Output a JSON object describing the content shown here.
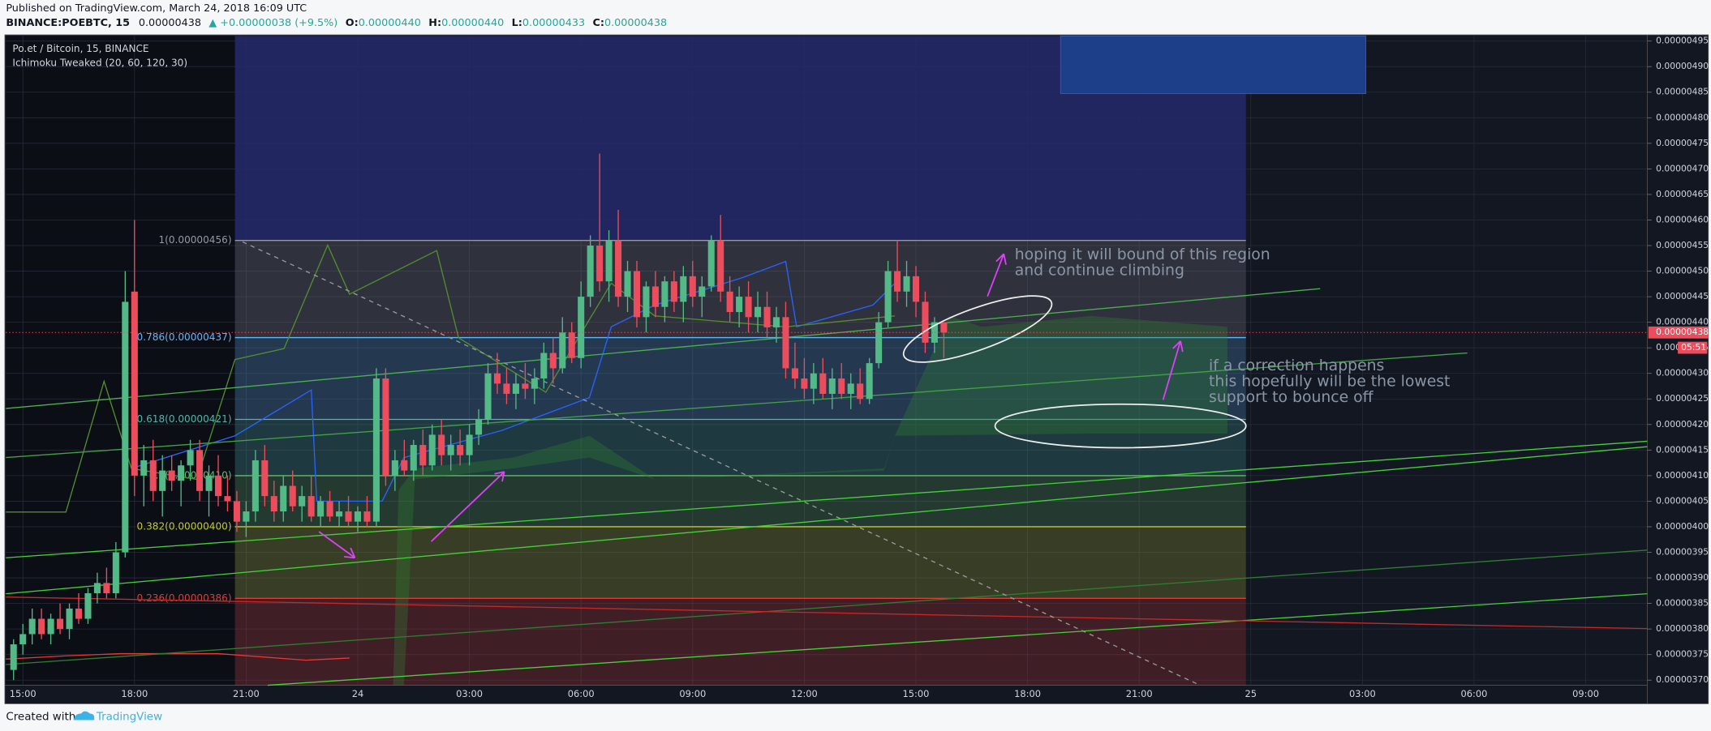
{
  "header": {
    "published": "Published on TradingView.com, March 24, 2018 16:09 UTC",
    "symbol": "BINANCE:POEBTC, 15",
    "last": "0.00000438",
    "change": "▲ +0.00000038 (+9.5%)",
    "ohlc": [
      {
        "label": "O:",
        "value": "0.00000440"
      },
      {
        "label": "H:",
        "value": "0.00000440"
      },
      {
        "label": "L:",
        "value": "0.00000433"
      },
      {
        "label": "C:",
        "value": "0.00000438"
      }
    ]
  },
  "chart_data": {
    "type": "candlestick",
    "title": "Po.et / Bitcoin, 15, BINANCE",
    "indicator": "Ichimoku Tweaked (20, 60, 120, 30)",
    "up_color": "#53b987",
    "down_color": "#eb4d5c",
    "ylim": [
      3.69e-06,
      4.96e-06
    ],
    "yticks": [
      {
        "value": 3.7e-06,
        "label": "0.00000370"
      },
      {
        "value": 3.75e-06,
        "label": "0.00000375"
      },
      {
        "value": 3.8e-06,
        "label": "0.00000380"
      },
      {
        "value": 3.85e-06,
        "label": "0.00000385"
      },
      {
        "value": 3.9e-06,
        "label": "0.00000390"
      },
      {
        "value": 3.95e-06,
        "label": "0.00000395"
      },
      {
        "value": 4e-06,
        "label": "0.00000400"
      },
      {
        "value": 4.05e-06,
        "label": "0.00000405"
      },
      {
        "value": 4.1e-06,
        "label": "0.00000410"
      },
      {
        "value": 4.15e-06,
        "label": "0.00000415"
      },
      {
        "value": 4.2e-06,
        "label": "0.00000420"
      },
      {
        "value": 4.25e-06,
        "label": "0.00000425"
      },
      {
        "value": 4.3e-06,
        "label": "0.00000430"
      },
      {
        "value": 4.35e-06,
        "label": "0.00000435"
      },
      {
        "value": 4.4e-06,
        "label": "0.00000440"
      },
      {
        "value": 4.45e-06,
        "label": "0.00000445"
      },
      {
        "value": 4.5e-06,
        "label": "0.00000450"
      },
      {
        "value": 4.55e-06,
        "label": "0.00000455"
      },
      {
        "value": 4.6e-06,
        "label": "0.00000460"
      },
      {
        "value": 4.65e-06,
        "label": "0.00000465"
      },
      {
        "value": 4.7e-06,
        "label": "0.00000470"
      },
      {
        "value": 4.75e-06,
        "label": "0.00000475"
      },
      {
        "value": 4.8e-06,
        "label": "0.00000480"
      },
      {
        "value": 4.85e-06,
        "label": "0.00000485"
      },
      {
        "value": 4.9e-06,
        "label": "0.00000490"
      },
      {
        "value": 4.95e-06,
        "label": "0.00000495"
      }
    ],
    "x_labels": [
      "15:00",
      "18:00",
      "21:00",
      "24",
      "03:00",
      "06:00",
      "09:00",
      "12:00",
      "15:00",
      "18:00",
      "21:00",
      "25",
      "03:00",
      "06:00",
      "09:00"
    ],
    "open": [
      3.72e-06,
      3.77e-06,
      3.79e-06,
      3.82e-06,
      3.79e-06,
      3.82e-06,
      3.8e-06,
      3.84e-06,
      3.82e-06,
      3.87e-06,
      3.89e-06,
      3.87e-06,
      3.95e-06,
      4.46e-06,
      4.1e-06,
      4.13e-06,
      4.07e-06,
      4.11e-06,
      4.09e-06,
      4.12e-06,
      4.15e-06,
      4.07e-06,
      4.1e-06,
      4.06e-06,
      4.05e-06,
      4.01e-06,
      4.03e-06,
      4.13e-06,
      4.06e-06,
      4.03e-06,
      4.08e-06,
      4.04e-06,
      4.06e-06,
      4.02e-06,
      4.05e-06,
      4.02e-06,
      4.03e-06,
      4.01e-06,
      4.03e-06,
      4.01e-06,
      4.29e-06,
      4.1e-06,
      4.13e-06,
      4.11e-06,
      4.16e-06,
      4.12e-06,
      4.18e-06,
      4.14e-06,
      4.16e-06,
      4.14e-06,
      4.18e-06,
      4.21e-06,
      4.3e-06,
      4.28e-06,
      4.26e-06,
      4.28e-06,
      4.27e-06,
      4.29e-06,
      4.34e-06,
      4.31e-06,
      4.38e-06,
      4.33e-06,
      4.45e-06,
      4.55e-06,
      4.48e-06,
      4.56e-06,
      4.45e-06,
      4.5e-06,
      4.41e-06,
      4.47e-06,
      4.43e-06,
      4.48e-06,
      4.44e-06,
      4.49e-06,
      4.45e-06,
      4.47e-06,
      4.56e-06,
      4.46e-06,
      4.42e-06,
      4.45e-06,
      4.41e-06,
      4.43e-06,
      4.39e-06,
      4.41e-06,
      4.31e-06,
      4.29e-06,
      4.27e-06,
      4.3e-06,
      4.26e-06,
      4.29e-06,
      4.26e-06,
      4.28e-06,
      4.25e-06,
      4.32e-06,
      4.4e-06,
      4.5e-06,
      4.46e-06,
      4.49e-06,
      4.44e-06,
      4.36e-06,
      4.4e-06
    ],
    "high": [
      3.78e-06,
      3.81e-06,
      3.84e-06,
      3.84e-06,
      3.83e-06,
      3.85e-06,
      3.85e-06,
      3.87e-06,
      3.88e-06,
      3.91e-06,
      3.92e-06,
      3.97e-06,
      4.5e-06,
      4.6e-06,
      4.16e-06,
      4.17e-06,
      4.14e-06,
      4.14e-06,
      4.13e-06,
      4.17e-06,
      4.17e-06,
      4.12e-06,
      4.14e-06,
      4.1e-06,
      4.07e-06,
      4.05e-06,
      4.15e-06,
      4.16e-06,
      4.09e-06,
      4.1e-06,
      4.11e-06,
      4.08e-06,
      4.1e-06,
      4.06e-06,
      4.07e-06,
      4.05e-06,
      4.06e-06,
      4.04e-06,
      4.06e-06,
      4.31e-06,
      4.31e-06,
      4.15e-06,
      4.17e-06,
      4.17e-06,
      4.19e-06,
      4.2e-06,
      4.21e-06,
      4.18e-06,
      4.19e-06,
      4.2e-06,
      4.23e-06,
      4.32e-06,
      4.34e-06,
      4.31e-06,
      4.3e-06,
      4.32e-06,
      4.31e-06,
      4.36e-06,
      4.37e-06,
      4.41e-06,
      4.4e-06,
      4.48e-06,
      4.57e-06,
      4.73e-06,
      4.58e-06,
      4.62e-06,
      4.52e-06,
      4.52e-06,
      4.48e-06,
      4.5e-06,
      4.49e-06,
      4.5e-06,
      4.51e-06,
      4.52e-06,
      4.49e-06,
      4.57e-06,
      4.61e-06,
      4.49e-06,
      4.47e-06,
      4.48e-06,
      4.46e-06,
      4.46e-06,
      4.43e-06,
      4.44e-06,
      4.36e-06,
      4.33e-06,
      4.32e-06,
      4.33e-06,
      4.31e-06,
      4.32e-06,
      4.3e-06,
      4.31e-06,
      4.33e-06,
      4.42e-06,
      4.52e-06,
      4.56e-06,
      4.52e-06,
      4.51e-06,
      4.46e-06,
      4.41e-06,
      4.4e-06
    ],
    "low": [
      3.7e-06,
      3.75e-06,
      3.77e-06,
      3.78e-06,
      3.77e-06,
      3.79e-06,
      3.78e-06,
      3.81e-06,
      3.81e-06,
      3.85e-06,
      3.86e-06,
      3.86e-06,
      3.94e-06,
      4.06e-06,
      4.04e-06,
      4.05e-06,
      4.02e-06,
      4.07e-06,
      4.04e-06,
      4.09e-06,
      4.05e-06,
      4.02e-06,
      4.04e-06,
      4.03e-06,
      3.99e-06,
      3.98e-06,
      4.01e-06,
      4.04e-06,
      4.01e-06,
      4.01e-06,
      4.03e-06,
      4.01e-06,
      4.01e-06,
      4e-06,
      4.01e-06,
      4e-06,
      4e-06,
      3.99e-06,
      4e-06,
      4e-06,
      4.08e-06,
      4.07e-06,
      4.1e-06,
      4.09e-06,
      4.1e-06,
      4.11e-06,
      4.12e-06,
      4.11e-06,
      4.12e-06,
      4.12e-06,
      4.16e-06,
      4.2e-06,
      4.26e-06,
      4.24e-06,
      4.23e-06,
      4.25e-06,
      4.24e-06,
      4.27e-06,
      4.28e-06,
      4.3e-06,
      4.32e-06,
      4.31e-06,
      4.43e-06,
      4.46e-06,
      4.44e-06,
      4.43e-06,
      4.42e-06,
      4.39e-06,
      4.38e-06,
      4.41e-06,
      4.4e-06,
      4.42e-06,
      4.4e-06,
      4.43e-06,
      4.41e-06,
      4.46e-06,
      4.44e-06,
      4.4e-06,
      4.39e-06,
      4.38e-06,
      4.38e-06,
      4.37e-06,
      4.36e-06,
      4.29e-06,
      4.27e-06,
      4.25e-06,
      4.24e-06,
      4.25e-06,
      4.23e-06,
      4.25e-06,
      4.23e-06,
      4.24e-06,
      4.24e-06,
      4.31e-06,
      4.39e-06,
      4.44e-06,
      4.43e-06,
      4.41e-06,
      4.34e-06,
      4.34e-06,
      4.33e-06
    ],
    "close": [
      3.77e-06,
      3.79e-06,
      3.82e-06,
      3.79e-06,
      3.82e-06,
      3.8e-06,
      3.84e-06,
      3.82e-06,
      3.87e-06,
      3.89e-06,
      3.87e-06,
      3.95e-06,
      4.44e-06,
      4.1e-06,
      4.13e-06,
      4.07e-06,
      4.11e-06,
      4.09e-06,
      4.12e-06,
      4.15e-06,
      4.07e-06,
      4.1e-06,
      4.06e-06,
      4.05e-06,
      4.01e-06,
      4.03e-06,
      4.13e-06,
      4.06e-06,
      4.03e-06,
      4.08e-06,
      4.04e-06,
      4.06e-06,
      4.02e-06,
      4.05e-06,
      4.02e-06,
      4.03e-06,
      4.01e-06,
      4.03e-06,
      4.01e-06,
      4.29e-06,
      4.1e-06,
      4.13e-06,
      4.11e-06,
      4.16e-06,
      4.12e-06,
      4.18e-06,
      4.14e-06,
      4.16e-06,
      4.14e-06,
      4.18e-06,
      4.21e-06,
      4.3e-06,
      4.28e-06,
      4.26e-06,
      4.28e-06,
      4.27e-06,
      4.29e-06,
      4.34e-06,
      4.31e-06,
      4.38e-06,
      4.33e-06,
      4.45e-06,
      4.55e-06,
      4.48e-06,
      4.56e-06,
      4.45e-06,
      4.5e-06,
      4.41e-06,
      4.47e-06,
      4.43e-06,
      4.48e-06,
      4.44e-06,
      4.49e-06,
      4.45e-06,
      4.47e-06,
      4.56e-06,
      4.46e-06,
      4.42e-06,
      4.45e-06,
      4.41e-06,
      4.43e-06,
      4.39e-06,
      4.41e-06,
      4.31e-06,
      4.29e-06,
      4.27e-06,
      4.3e-06,
      4.26e-06,
      4.29e-06,
      4.26e-06,
      4.28e-06,
      4.25e-06,
      4.32e-06,
      4.4e-06,
      4.5e-06,
      4.46e-06,
      4.49e-06,
      4.44e-06,
      4.36e-06,
      4.4e-06,
      4.38e-06
    ],
    "fib_levels": [
      {
        "label": "1(0.00000456)",
        "value": 4.56e-06,
        "color": "#9598a1"
      },
      {
        "label": "0.786(0.00000437)",
        "value": 4.37e-06,
        "color": "#64b5f6"
      },
      {
        "label": "0.618(0.00000421)",
        "value": 4.21e-06,
        "color": "#4db6ac"
      },
      {
        "label": "0.5(0.00000410)",
        "value": 4.1e-06,
        "color": "#66bb6a"
      },
      {
        "label": "0.382(0.00000400)",
        "value": 4e-06,
        "color": "#c0ca33"
      },
      {
        "label": "0.236(0.00000386)",
        "value": 3.86e-06,
        "color": "#e53935"
      }
    ],
    "last_price": {
      "value": 4.38e-06,
      "label": "0.00000438"
    },
    "countdown": "05:51",
    "annotations": [
      {
        "lines": [
          "hoping it will bound of this region",
          "and continue climbing"
        ]
      },
      {
        "lines": [
          "if a correction happens",
          "this hopefully will be the lowest",
          "support to bounce off"
        ]
      }
    ]
  },
  "footer": {
    "created": "Created with",
    "brand": "TradingView"
  }
}
